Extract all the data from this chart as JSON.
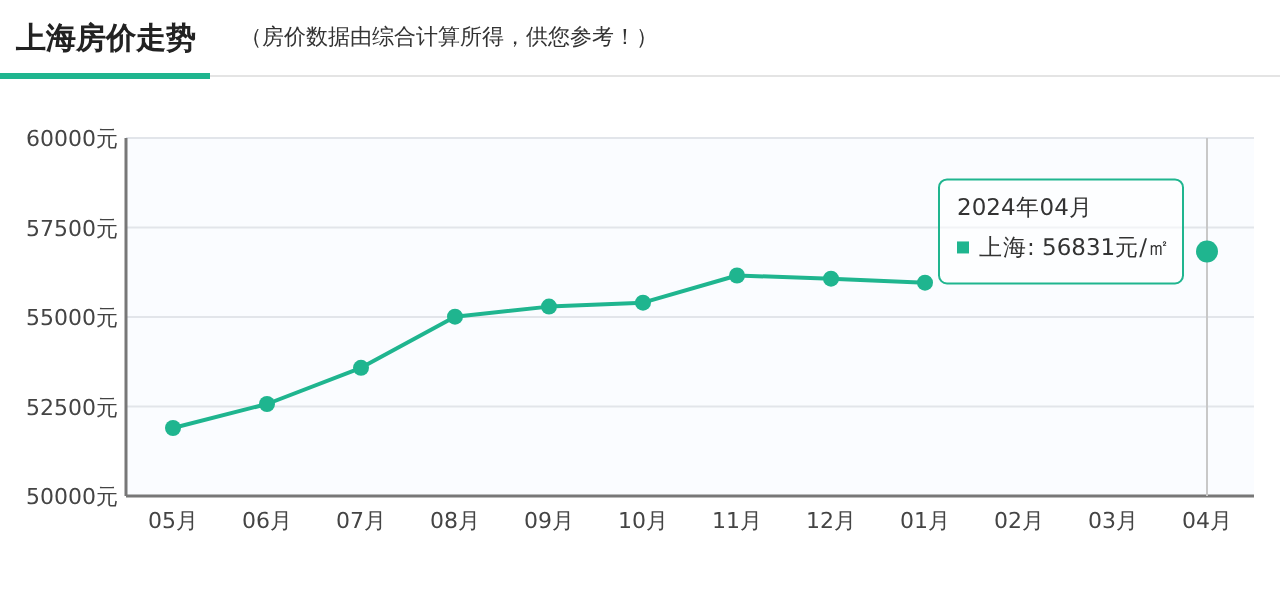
{
  "chart_data": {
    "type": "line",
    "title": "上海房价走势",
    "subtitle": "（房价数据由综合计算所得，供您参考！）",
    "categories": [
      "05月",
      "06月",
      "07月",
      "08月",
      "09月",
      "10月",
      "11月",
      "12月",
      "01月",
      "02月",
      "03月",
      "04月"
    ],
    "series": [
      {
        "color": "#1fb58f",
        "values": [
          51900,
          52570,
          53580,
          55010,
          55290,
          55400,
          56160,
          56070,
          55960,
          null,
          null,
          56831
        ]
      }
    ],
    "ylim": [
      50000,
      60000
    ],
    "yticks": [
      {
        "value": 50000,
        "label": "50000元"
      },
      {
        "value": 52500,
        "label": "52500元"
      },
      {
        "value": 55000,
        "label": "55000元"
      },
      {
        "value": 57500,
        "label": "57500元"
      },
      {
        "value": 60000,
        "label": "60000元"
      }
    ],
    "grid": "y",
    "marker": "circle",
    "line_style": "solid",
    "ref_lines": [
      {
        "axis": "x",
        "value": "04月",
        "color": "#c8c8c8"
      }
    ],
    "annotations": [
      "2024年04月",
      {
        "text": "上海: 56831元/㎡",
        "x": "04月",
        "y": 56831
      }
    ]
  }
}
